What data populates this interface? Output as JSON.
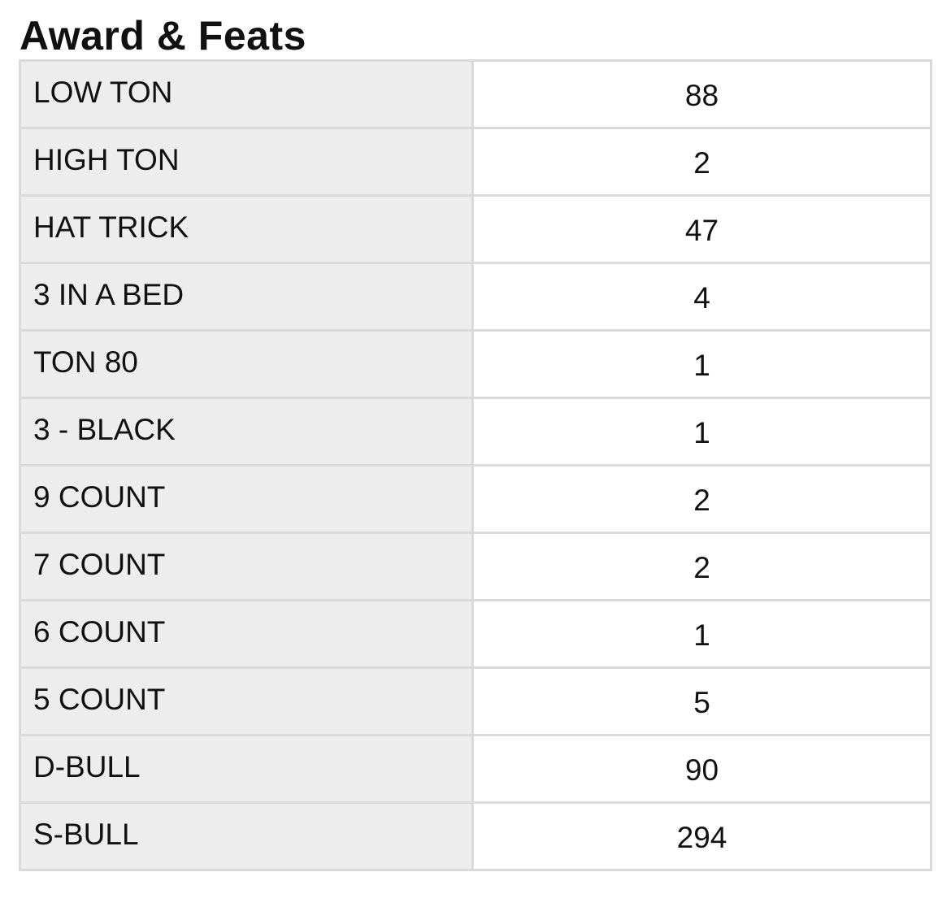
{
  "title": "Award & Feats",
  "rows": [
    {
      "label": "LOW TON",
      "value": "88"
    },
    {
      "label": "HIGH TON",
      "value": "2"
    },
    {
      "label": "HAT TRICK",
      "value": "47"
    },
    {
      "label": "3 IN A BED",
      "value": "4"
    },
    {
      "label": "TON 80",
      "value": "1"
    },
    {
      "label": "3 - BLACK",
      "value": "1"
    },
    {
      "label": "9 COUNT",
      "value": "2"
    },
    {
      "label": "7 COUNT",
      "value": "2"
    },
    {
      "label": "6 COUNT",
      "value": "1"
    },
    {
      "label": "5 COUNT",
      "value": "5"
    },
    {
      "label": "D-BULL",
      "value": "90"
    },
    {
      "label": "S-BULL",
      "value": "294"
    }
  ]
}
